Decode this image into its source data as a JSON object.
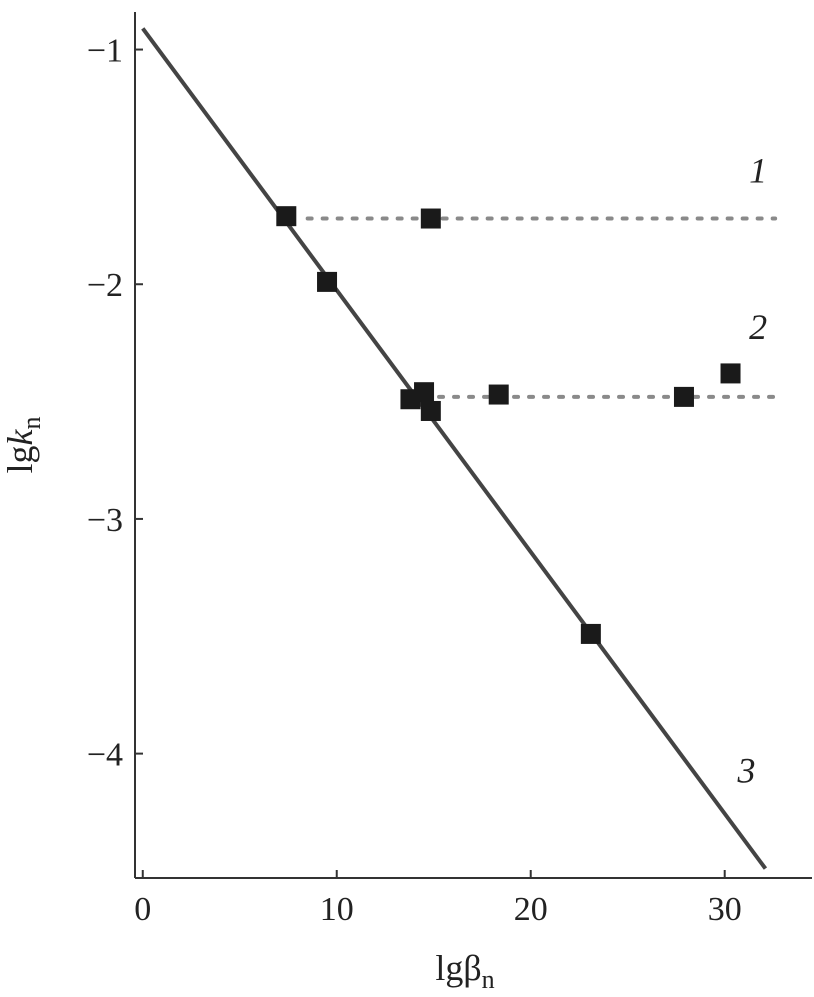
{
  "chart_data": {
    "type": "scatter",
    "x_label": [
      "lgβ",
      "n"
    ],
    "y_label": [
      "lg",
      "k",
      "n"
    ],
    "xlim": [
      -0.4,
      34.5
    ],
    "ylim": [
      -4.53,
      -0.84
    ],
    "xticks": [
      0,
      10,
      20,
      30
    ],
    "yticks": [
      {
        "value": -1,
        "label": "−1"
      },
      {
        "value": -2,
        "label": "−2"
      },
      {
        "value": -3,
        "label": "−3"
      },
      {
        "value": -4,
        "label": "−4"
      }
    ],
    "series": [
      {
        "name": "1",
        "type": "line",
        "style": "dotted",
        "color": "#8a8a8a",
        "x": [
          8.5,
          32.6
        ],
        "values": [
          -1.72,
          -1.72
        ]
      },
      {
        "name": "2",
        "type": "line",
        "style": "dotted",
        "color": "#8a8a8a",
        "x": [
          14.5,
          32.6
        ],
        "values": [
          -2.48,
          -2.48
        ]
      },
      {
        "name": "3",
        "type": "line",
        "style": "solid",
        "color": "#444444",
        "x": [
          0,
          32.1
        ],
        "values": [
          -0.91,
          -4.49
        ]
      },
      {
        "type": "scatter",
        "color": "#1a1a1a",
        "x": [
          7.4,
          14.85,
          9.5,
          13.8,
          14.5,
          14.85,
          18.35,
          27.9,
          30.3,
          23.1
        ],
        "values": [
          -1.71,
          -1.72,
          -1.99,
          -2.49,
          -2.46,
          -2.54,
          -2.47,
          -2.48,
          -2.38,
          -3.49
        ]
      }
    ]
  }
}
